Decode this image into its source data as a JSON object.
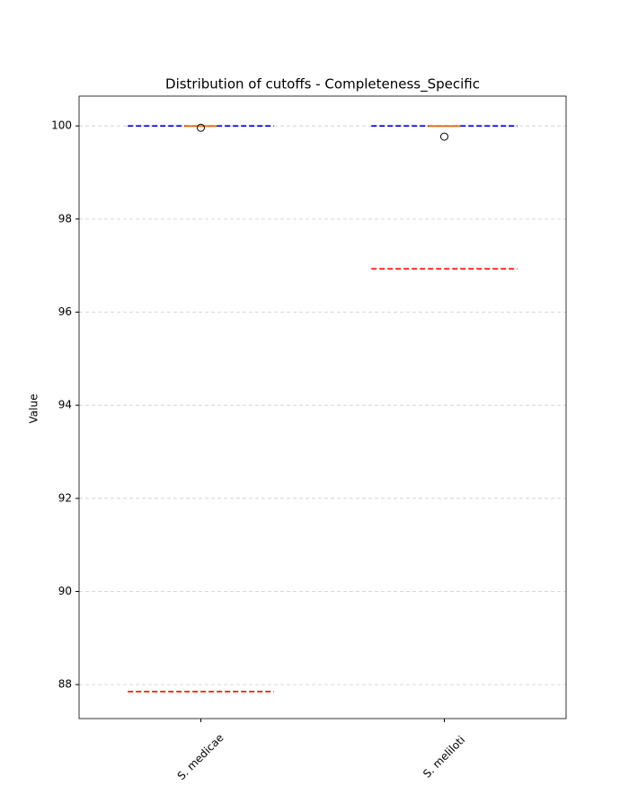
{
  "chart_data": {
    "type": "box",
    "title": "Distribution of cutoffs - Completeness_Specific",
    "ylabel": "Value",
    "categories": [
      "S. medicae",
      "S. meliloti"
    ],
    "boxes": [
      {
        "q1": 100,
        "median": 100,
        "q3": 100,
        "whislo": 100,
        "whishi": 100,
        "fliers": [
          99.96
        ]
      },
      {
        "q1": 100,
        "median": 100,
        "q3": 100,
        "whislo": 100,
        "whishi": 100,
        "fliers": [
          99.77
        ]
      }
    ],
    "lines": [
      {
        "color": "#0000cc",
        "values": [
          100,
          100
        ]
      },
      {
        "color": "#ff0000",
        "values": [
          87.85,
          96.93
        ]
      }
    ],
    "box_color": "#000000",
    "median_color": "#ff7f0e",
    "ylim": [
      87.27,
      100.64
    ],
    "yticks": [
      88,
      90,
      92,
      94,
      96,
      98,
      100
    ],
    "grid": true
  }
}
